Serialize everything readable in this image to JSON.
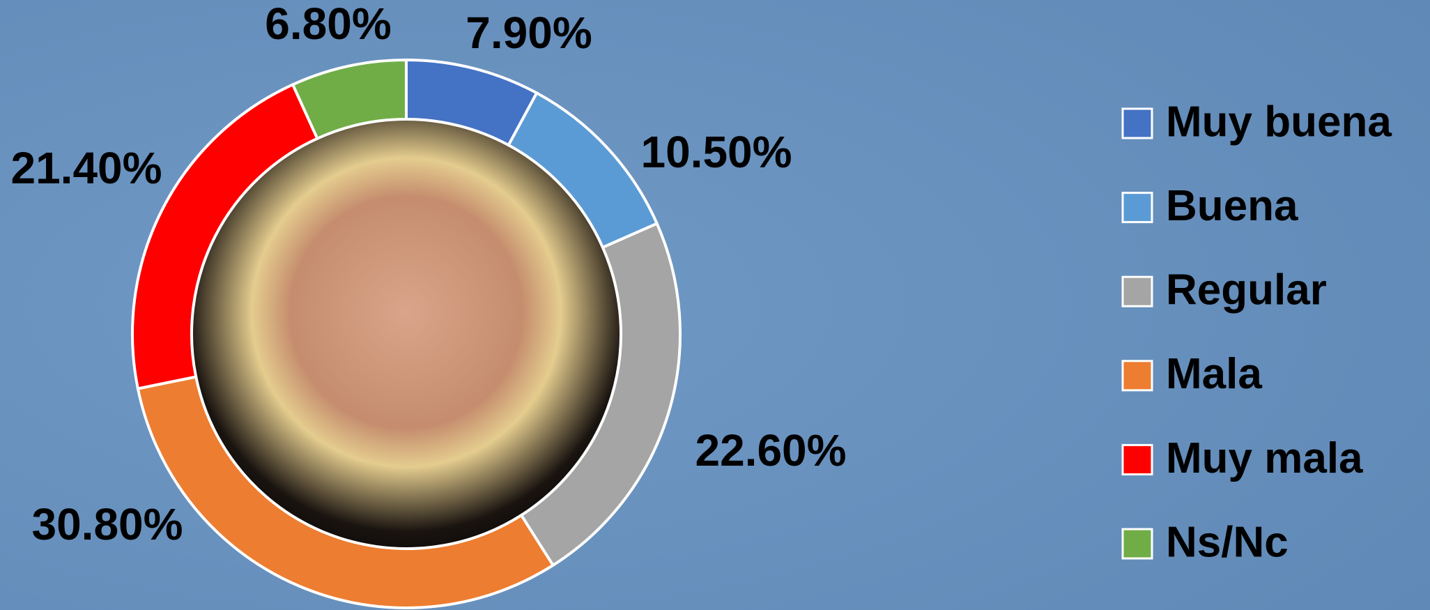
{
  "chart_data": {
    "type": "donut",
    "categories": [
      "Muy buena",
      "Buena",
      "Regular",
      "Mala",
      "Muy mala",
      "Ns/Nc"
    ],
    "values": [
      7.9,
      10.5,
      22.6,
      30.8,
      21.4,
      6.8
    ],
    "value_labels": [
      "7.90%",
      "10.50%",
      "22.60%",
      "30.80%",
      "21.40%",
      "6.80%"
    ],
    "colors": [
      "#4472c4",
      "#5b9bd5",
      "#a5a5a5",
      "#ed7d31",
      "#ff0000",
      "#70ad47"
    ],
    "legend": "right"
  }
}
